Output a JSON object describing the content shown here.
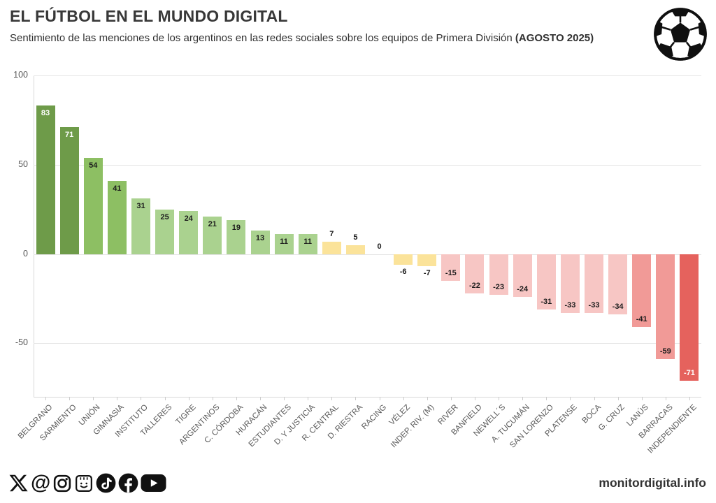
{
  "header": {
    "title": "EL FÚTBOL EN EL MUNDO DIGITAL",
    "subtitle": "Sentimiento de las menciones de los argentinos en las redes sociales sobre los equipos de Primera División ",
    "subtitle_bold": "(AGOSTO 2025)",
    "logo_icon": "soccer-ball-icon"
  },
  "chart_data": {
    "type": "bar",
    "title": "EL FÚTBOL EN EL MUNDO DIGITAL",
    "subtitle": "Sentimiento de las menciones de los argentinos en las redes sociales sobre los equipos de Primera División (AGOSTO 2025)",
    "categories": [
      "BELGRANO",
      "SARMIENTO",
      "UNIÓN",
      "GIMNASIA",
      "INSTITUTO",
      "TALLERES",
      "TIGRE",
      "ARGENTINOS",
      "C. CÓRDOBA",
      "HURACÁN",
      "ESTUDIANTES",
      "D. Y JUSTICIA",
      "R. CENTRAL",
      "D. RIESTRA",
      "RACING",
      "VÉLEZ",
      "INDEP. RIV. (M)",
      "RIVER",
      "BANFIELD",
      "NEWELL´S",
      "A. TUCUMÁN",
      "SAN LORENZO",
      "PLATENSE",
      "BOCA",
      "G. CRUZ",
      "LANÚS",
      "BARRACAS",
      "INDEPENDIENTE"
    ],
    "values": [
      83,
      71,
      54,
      41,
      31,
      25,
      24,
      21,
      19,
      13,
      11,
      11,
      7,
      5,
      0,
      -6,
      -7,
      -15,
      -22,
      -23,
      -24,
      -31,
      -33,
      -33,
      -34,
      -41,
      -59,
      -71
    ],
    "bar_colors": [
      "#6e9b49",
      "#6e9b49",
      "#8dbf63",
      "#8dbf63",
      "#aad28f",
      "#aad28f",
      "#aad28f",
      "#aad28f",
      "#aad28f",
      "#aad28f",
      "#aad28f",
      "#aad28f",
      "#fbe39a",
      "#fbe39a",
      "none",
      "#fbe39a",
      "#fbe39a",
      "#f7c6c4",
      "#f7c6c4",
      "#f7c6c4",
      "#f7c6c4",
      "#f7c6c4",
      "#f7c6c4",
      "#f7c6c4",
      "#f7c6c4",
      "#f19a97",
      "#f19a97",
      "#e5625d"
    ],
    "white_label_values": [
      83,
      71,
      -71
    ],
    "xlabel": "",
    "ylabel": "",
    "ylim": [
      -80,
      100
    ],
    "yticks": [
      100,
      50,
      0,
      -50
    ],
    "grid": "horizontal",
    "legend": "none",
    "palette": {
      "green_dark": "#6e9b49",
      "green_mid": "#8dbf63",
      "green_light": "#aad28f",
      "yellow": "#fbe39a",
      "pink_light": "#f7c6c4",
      "salmon": "#f19a97",
      "red": "#e5625d",
      "axis_text": "#595959",
      "gridline": "#e4e4e4"
    }
  },
  "footer": {
    "icons": [
      "x-icon",
      "threads-icon",
      "instagram-icon",
      "smiley-box-icon",
      "tiktok-icon",
      "facebook-icon",
      "youtube-icon"
    ],
    "site": "monitordigital.info"
  }
}
